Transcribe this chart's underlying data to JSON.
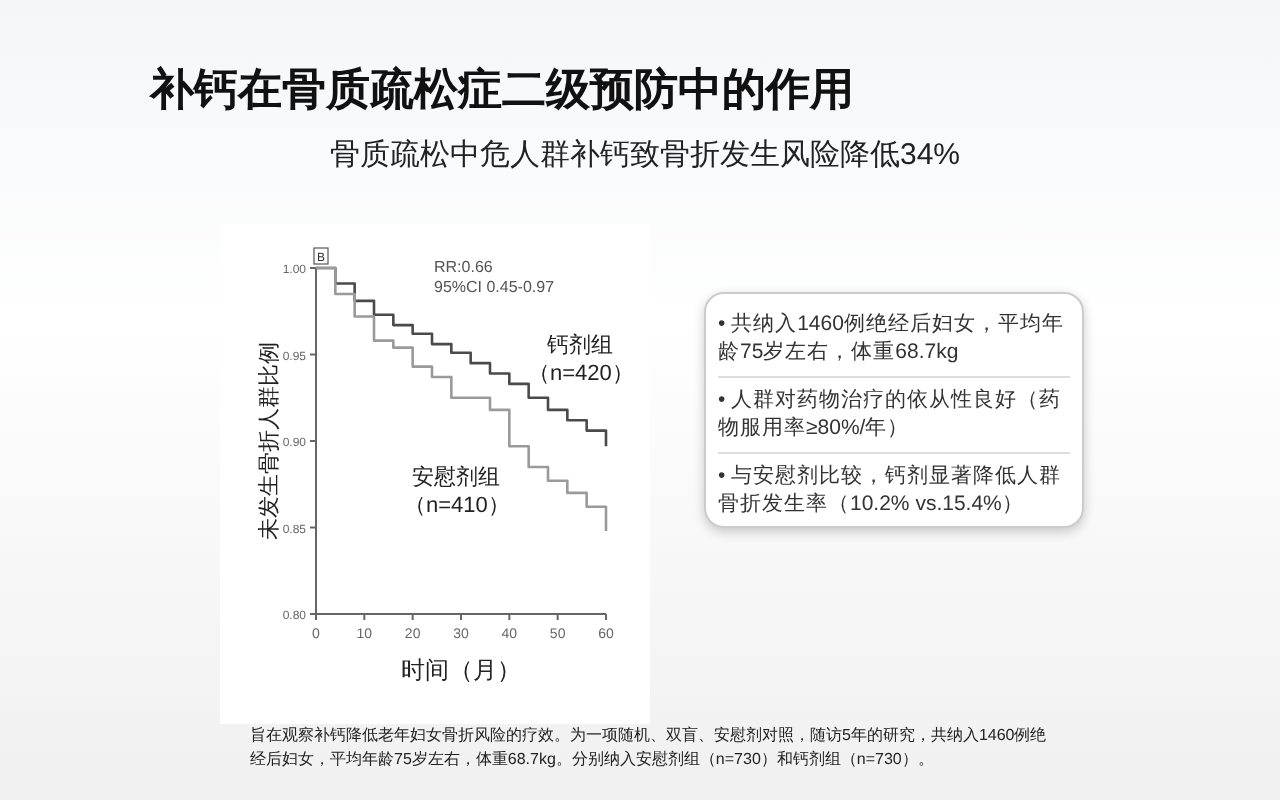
{
  "chart_data": {
    "type": "step",
    "title": "补钙在骨质疏松症二级预防中的作用",
    "subtitle": "骨质疏松中危人群补钙致骨折发生风险降低34%",
    "xlabel": "时间（月）",
    "ylabel": "未发生骨折人群比例",
    "xlim": [
      0,
      60
    ],
    "xticks": [
      0,
      10,
      20,
      30,
      40,
      50,
      60
    ],
    "ylim": [
      0.8,
      1.0
    ],
    "yticks": [
      {
        "value": 0.8,
        "label": "0.80"
      },
      {
        "value": 0.85,
        "label": "0.85"
      },
      {
        "value": 0.9,
        "label": "0.90"
      },
      {
        "value": 0.95,
        "label": "0.95"
      },
      {
        "value": 1.0,
        "label": "1.00"
      }
    ],
    "grid": false,
    "series": [
      {
        "name": "钙剂组（n=420）",
        "color": "#4a4a4a",
        "x": [
          0,
          4,
          8,
          12,
          16,
          20,
          24,
          28,
          32,
          36,
          40,
          44,
          48,
          52,
          56,
          60
        ],
        "values": [
          1.0,
          0.991,
          0.981,
          0.973,
          0.967,
          0.962,
          0.956,
          0.951,
          0.945,
          0.939,
          0.933,
          0.925,
          0.918,
          0.912,
          0.906,
          0.897
        ]
      },
      {
        "name": "安慰剂组（n=410）",
        "color": "#9a9a9a",
        "x": [
          0,
          4,
          8,
          12,
          16,
          20,
          24,
          28,
          32,
          36,
          40,
          44,
          48,
          52,
          56,
          60
        ],
        "values": [
          1.0,
          0.985,
          0.972,
          0.958,
          0.954,
          0.943,
          0.937,
          0.925,
          0.925,
          0.918,
          0.897,
          0.885,
          0.877,
          0.87,
          0.862,
          0.848
        ]
      }
    ],
    "annotations": [
      "B",
      "RR:0.66",
      "95%CI 0.45-0.97",
      "• 共纳入1460例绝经后妇女，平均年龄75岁左右，体重68.7kg",
      "• 人群对药物治疗的依从性良好（药物服用率≥80%/年）",
      "• 与安慰剂比较，钙剂显著降低人群骨折发生率（10.2% vs.15.4%）",
      "旨在观察补钙降低老年妇女骨折风险的疗效。为一项随机、双盲、安慰剂对照，随访5年的研究，共纳入1460例绝经后妇女，平均年龄75岁左右，体重68.7kg。分别纳入安慰剂组（n=730）和钙剂组（n=730）。"
    ]
  }
}
